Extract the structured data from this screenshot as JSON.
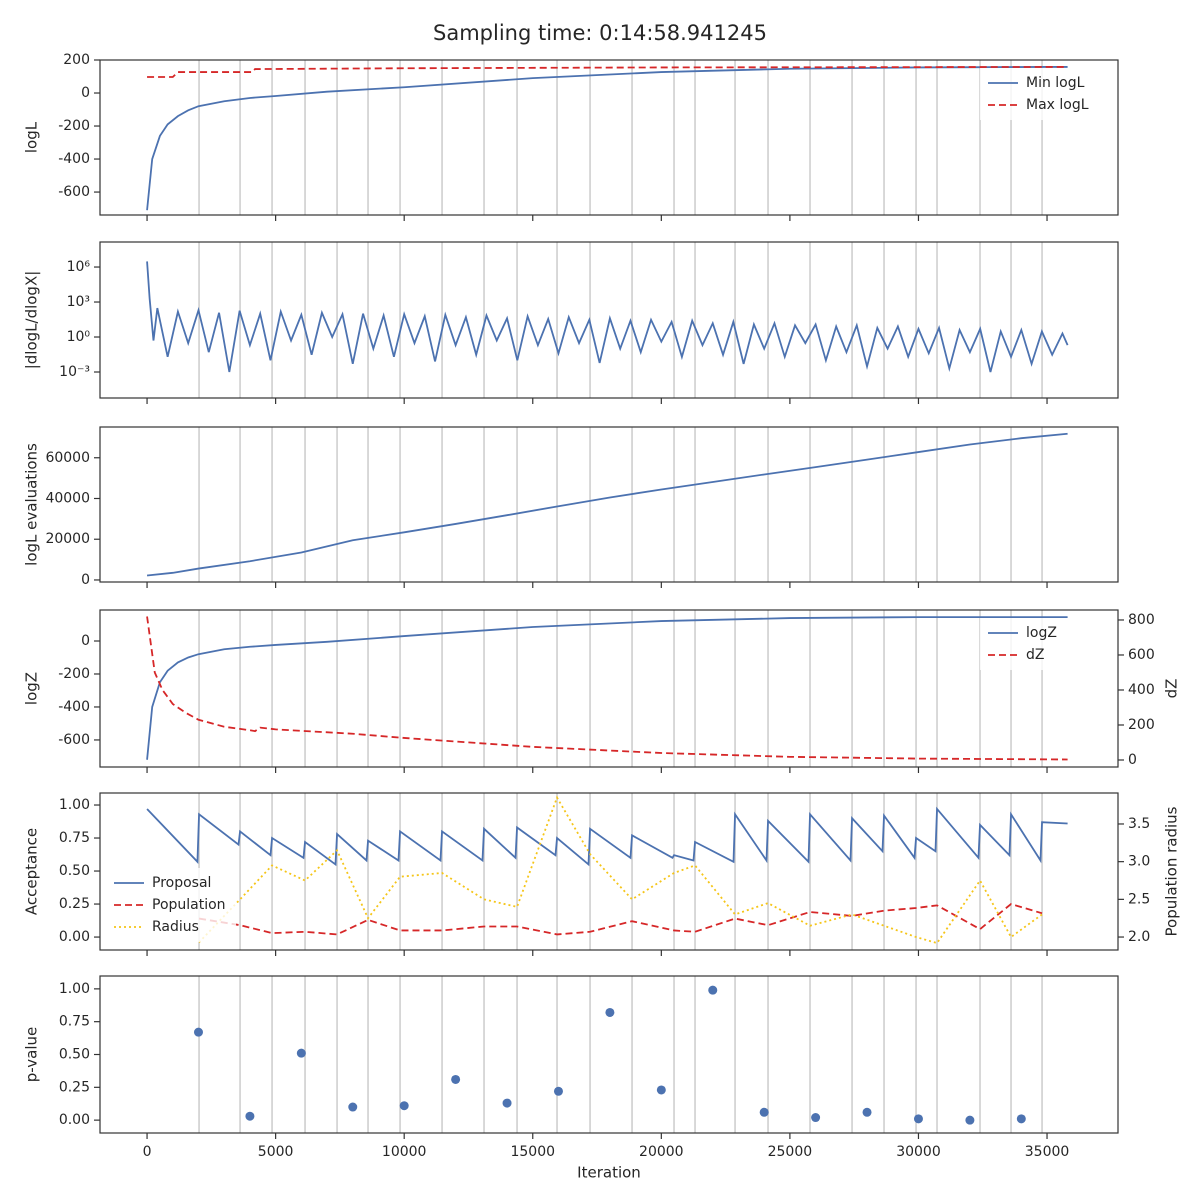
{
  "title": "Sampling time: 0:14:58.941245",
  "xlabel": "Iteration",
  "xlim": [
    -1830,
    37760
  ],
  "xticks": [
    0,
    5000,
    10000,
    15000,
    20000,
    25000,
    30000,
    35000
  ],
  "boundaries": [
    2022,
    3617,
    4861,
    6144,
    7389,
    8594,
    9839,
    11472,
    13105,
    14389,
    15944,
    17228,
    18861,
    20494,
    21311,
    22867,
    24150,
    25783,
    27417,
    28661,
    29906,
    30722,
    32394,
    33600,
    34806
  ],
  "chart_data": [
    {
      "type": "line",
      "ylabel": "logL",
      "ylim": [
        -739,
        200
      ],
      "yticks": [
        -600,
        -400,
        -200,
        0,
        200
      ],
      "legend": "upper right",
      "series": [
        {
          "name": "Min logL",
          "color": "#4c72b0",
          "style": "solid",
          "x": [
            0,
            200,
            500,
            800,
            1200,
            1600,
            2000,
            3000,
            4000,
            5000,
            7000,
            10000,
            15000,
            20000,
            25000,
            30000,
            35000,
            35800
          ],
          "values": [
            -710,
            -400,
            -260,
            -190,
            -140,
            -105,
            -80,
            -50,
            -30,
            -18,
            8,
            35,
            90,
            127,
            147,
            155,
            158,
            158
          ]
        },
        {
          "name": "Max logL",
          "color": "#d62728",
          "style": "dashed",
          "x": [
            0,
            1000,
            1200,
            4100,
            4200,
            10000,
            20000,
            35800
          ],
          "values": [
            97,
            97,
            127,
            127,
            145,
            150,
            155,
            158
          ]
        }
      ]
    },
    {
      "type": "line",
      "ylabel": "|dlogL/dlogX|",
      "yscale": "log",
      "ylim": [
        5.9e-06,
        140000000.0
      ],
      "yticks": [
        {
          "value": 0.001,
          "label": "10⁻³"
        },
        {
          "value": 1,
          "label": "10⁰"
        },
        {
          "value": 1000,
          "label": "10³"
        },
        {
          "value": 1000000,
          "label": "10⁶"
        }
      ],
      "series": [
        {
          "color": "#4c72b0",
          "style": "solid",
          "x": [
            0,
            100,
            250,
            400,
            800,
            1200,
            1600,
            2000,
            2400,
            2800,
            3200,
            3600,
            4000,
            4400,
            4800,
            5200,
            5600,
            6000,
            6400,
            6800,
            7200,
            7600,
            8000,
            8400,
            8800,
            9200,
            9600,
            10000,
            10400,
            10800,
            11200,
            11600,
            12000,
            12400,
            12800,
            13200,
            13600,
            14000,
            14400,
            14800,
            15200,
            15600,
            16000,
            16400,
            16800,
            17200,
            17600,
            18000,
            18400,
            18800,
            19200,
            19600,
            20000,
            20400,
            20800,
            21200,
            21600,
            22000,
            22400,
            22800,
            23200,
            23600,
            24000,
            24400,
            24800,
            25200,
            25600,
            26000,
            26400,
            26800,
            27200,
            27600,
            28000,
            28400,
            28800,
            29200,
            29600,
            30000,
            30400,
            30800,
            31200,
            31600,
            32000,
            32400,
            32800,
            33200,
            33600,
            34000,
            34400,
            34800,
            35200,
            35600,
            35800
          ],
          "values": [
            3000000,
            2000,
            0.5,
            300,
            0.02,
            150,
            0.3,
            200,
            0.05,
            120,
            0.001,
            180,
            0.2,
            100,
            0.01,
            150,
            0.5,
            80,
            0.03,
            120,
            1,
            90,
            0.005,
            100,
            0.1,
            70,
            0.02,
            90,
            0.3,
            60,
            0.008,
            80,
            0.2,
            50,
            0.03,
            70,
            0.5,
            40,
            0.01,
            60,
            0.2,
            35,
            0.04,
            50,
            0.3,
            30,
            0.006,
            40,
            0.1,
            25,
            0.05,
            30,
            0.4,
            20,
            0.02,
            25,
            0.2,
            15,
            0.03,
            20,
            0.005,
            12,
            0.1,
            15,
            0.02,
            10,
            0.3,
            12,
            0.01,
            8,
            0.05,
            10,
            0.003,
            6,
            0.1,
            8,
            0.02,
            5,
            0.04,
            6,
            0.002,
            4,
            0.05,
            5,
            0.001,
            3,
            0.02,
            4,
            0.005,
            3,
            0.03,
            2,
            0.2
          ]
        }
      ]
    },
    {
      "type": "line",
      "ylabel": "logL evaluations",
      "ylim": [
        -1000,
        75100
      ],
      "yticks": [
        0,
        20000,
        40000,
        60000
      ],
      "series": [
        {
          "color": "#4c72b0",
          "style": "solid",
          "x": [
            0,
            1000,
            2000,
            4000,
            6000,
            8000,
            10000,
            12000,
            14000,
            16000,
            18000,
            20000,
            22000,
            24000,
            26000,
            28000,
            30000,
            32000,
            34000,
            35800
          ],
          "values": [
            2200,
            3500,
            5600,
            9200,
            13500,
            19500,
            23400,
            27500,
            31800,
            36200,
            40500,
            44400,
            48100,
            51800,
            55400,
            59100,
            62800,
            66500,
            69600,
            71800
          ]
        }
      ]
    },
    {
      "type": "line",
      "ylabel": "logZ",
      "y2label": "dZ",
      "ylim": [
        -764,
        188
      ],
      "yticks": [
        -600,
        -400,
        -200,
        0
      ],
      "y2lim": [
        -40,
        857
      ],
      "y2ticks": [
        0,
        200,
        400,
        600,
        800
      ],
      "legend": "upper right",
      "series": [
        {
          "name": "logZ",
          "color": "#4c72b0",
          "style": "solid",
          "x": [
            0,
            200,
            500,
            800,
            1200,
            1600,
            2000,
            3000,
            4000,
            5000,
            7000,
            10000,
            15000,
            20000,
            25000,
            30000,
            35800
          ],
          "values": [
            -720,
            -400,
            -250,
            -180,
            -130,
            -100,
            -80,
            -50,
            -35,
            -24,
            -5,
            30,
            85,
            121,
            139,
            145,
            145
          ]
        },
        {
          "name": "dZ",
          "color": "#d62728",
          "style": "dashed",
          "axis": "y2",
          "x": [
            0,
            300,
            600,
            1000,
            1500,
            2000,
            3000,
            4000,
            4200,
            4400,
            5000,
            8000,
            10000,
            15000,
            20000,
            25000,
            30000,
            35800
          ],
          "values": [
            820,
            500,
            400,
            320,
            270,
            230,
            190,
            170,
            165,
            185,
            175,
            150,
            126,
            75,
            40,
            18,
            8,
            3
          ]
        }
      ]
    },
    {
      "type": "line",
      "ylabel": "Acceptance",
      "y2label": "Population radius",
      "ylim": [
        -0.098,
        1.091
      ],
      "yticks": [
        {
          "value": 0,
          "label": "0.00"
        },
        {
          "value": 0.25,
          "label": "0.25"
        },
        {
          "value": 0.5,
          "label": "0.50"
        },
        {
          "value": 0.75,
          "label": "0.75"
        },
        {
          "value": 1,
          "label": "1.00"
        }
      ],
      "y2lim": [
        1.828,
        3.911
      ],
      "y2ticks": [
        {
          "value": 2,
          "label": "2.0"
        },
        2.5,
        {
          "value": 3,
          "label": "3.0"
        },
        3.5
      ],
      "legend": "lower left",
      "series": [
        {
          "name": "Proposal",
          "color": "#4c72b0",
          "style": "solid",
          "x": [
            0,
            1960,
            2022,
            3557,
            3617,
            4801,
            4861,
            6084,
            6144,
            7329,
            7389,
            8534,
            8594,
            9779,
            9839,
            11412,
            11472,
            13045,
            13105,
            14329,
            14389,
            15884,
            15944,
            17168,
            17228,
            18801,
            18861,
            20434,
            20494,
            21251,
            21311,
            22807,
            22867,
            24090,
            24150,
            25723,
            25783,
            27357,
            27417,
            28601,
            28661,
            29846,
            29906,
            30662,
            30722,
            32334,
            32394,
            33540,
            33600,
            34746,
            34806,
            35800
          ],
          "values": [
            0.97,
            0.57,
            0.93,
            0.7,
            0.8,
            0.62,
            0.75,
            0.6,
            0.72,
            0.55,
            0.78,
            0.58,
            0.73,
            0.58,
            0.8,
            0.58,
            0.8,
            0.58,
            0.82,
            0.6,
            0.83,
            0.62,
            0.75,
            0.55,
            0.82,
            0.6,
            0.77,
            0.6,
            0.62,
            0.58,
            0.72,
            0.57,
            0.93,
            0.58,
            0.88,
            0.57,
            0.93,
            0.58,
            0.9,
            0.65,
            0.92,
            0.6,
            0.75,
            0.65,
            0.97,
            0.6,
            0.85,
            0.62,
            0.93,
            0.58,
            0.87,
            0.86
          ]
        },
        {
          "name": "Population",
          "color": "#d62728",
          "style": "dashed",
          "x": [
            2022,
            3617,
            4861,
            6144,
            7389,
            8594,
            9839,
            11472,
            13105,
            14389,
            15944,
            17228,
            18861,
            20494,
            21311,
            22867,
            24150,
            25783,
            27417,
            28661,
            29906,
            30722,
            32394,
            33600,
            34806
          ],
          "values": [
            0.14,
            0.09,
            0.03,
            0.04,
            0.02,
            0.13,
            0.05,
            0.05,
            0.08,
            0.08,
            0.02,
            0.04,
            0.12,
            0.05,
            0.04,
            0.14,
            0.09,
            0.19,
            0.16,
            0.2,
            0.22,
            0.24,
            0.06,
            0.25,
            0.18
          ]
        },
        {
          "name": "Radius",
          "color": "#f5c518",
          "style": "dotted",
          "axis": "y2",
          "x": [
            2022,
            3617,
            4861,
            6144,
            7389,
            8594,
            9839,
            11472,
            13105,
            14389,
            15944,
            17228,
            18861,
            20494,
            21311,
            22867,
            24150,
            25783,
            27417,
            28661,
            29906,
            30722,
            32394,
            33600,
            34806
          ],
          "values": [
            1.93,
            2.5,
            2.95,
            2.75,
            3.15,
            2.25,
            2.8,
            2.85,
            2.5,
            2.4,
            3.85,
            3.1,
            2.5,
            2.85,
            2.95,
            2.3,
            2.45,
            2.15,
            2.3,
            2.15,
            2.0,
            1.92,
            2.75,
            2.0,
            2.3
          ]
        }
      ]
    },
    {
      "type": "scatter",
      "ylabel": "p-value",
      "ylim": [
        -0.098,
        1.098
      ],
      "yticks": [
        {
          "value": 0,
          "label": "0.00"
        },
        {
          "value": 0.25,
          "label": "0.25"
        },
        {
          "value": 0.5,
          "label": "0.50"
        },
        {
          "value": 0.75,
          "label": "0.75"
        },
        {
          "value": 1,
          "label": "1.00"
        }
      ],
      "series": [
        {
          "color": "#4c72b0",
          "x": [
            2000,
            4000,
            6000,
            8000,
            10000,
            12000,
            14000,
            16000,
            18000,
            20000,
            22000,
            24000,
            26000,
            28000,
            30000,
            32000,
            34000
          ],
          "values": [
            0.67,
            0.03,
            0.51,
            0.1,
            0.11,
            0.31,
            0.13,
            0.22,
            0.82,
            0.23,
            0.99,
            0.06,
            0.02,
            0.06,
            0.01,
            0.0,
            0.01
          ]
        }
      ]
    }
  ]
}
